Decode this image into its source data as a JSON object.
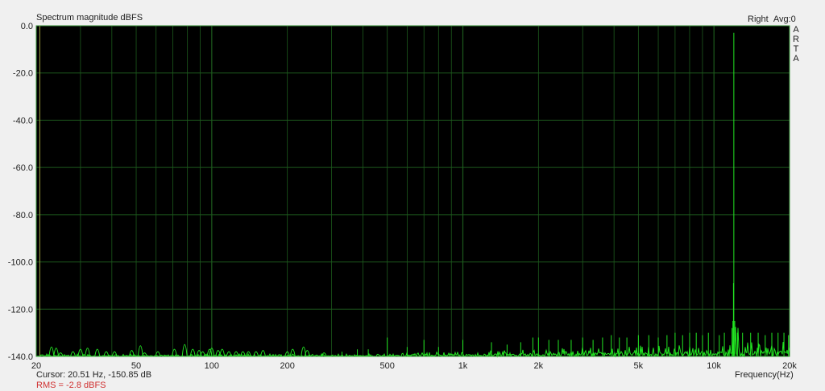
{
  "header": {
    "title": "Spectrum magnitude dBFS",
    "channel": "Right",
    "avg": "Avg:0",
    "logo": [
      "A",
      "R",
      "T",
      "A"
    ]
  },
  "footer": {
    "cursor": "Cursor: 20.51 Hz, -150.85 dB",
    "rms": "RMS =   -2.8 dBFS"
  },
  "colors": {
    "background": "#000000",
    "grid": "#1d5a1d",
    "trace": "#22e522",
    "cursor_line": "#a0a040",
    "rms_text": "#d03030"
  },
  "chart_data": {
    "type": "line",
    "title": "Spectrum magnitude dBFS",
    "xlabel": "Frequency(Hz)",
    "ylabel": "",
    "xscale": "log",
    "xlim": [
      20,
      20000
    ],
    "ylim": [
      -140,
      0
    ],
    "grid": true,
    "x_ticks": [
      {
        "v": 20,
        "label": "20"
      },
      {
        "v": 50,
        "label": "50"
      },
      {
        "v": 100,
        "label": "100"
      },
      {
        "v": 200,
        "label": "200"
      },
      {
        "v": 500,
        "label": "500"
      },
      {
        "v": 1000,
        "label": "1k"
      },
      {
        "v": 2000,
        "label": "2k"
      },
      {
        "v": 5000,
        "label": "5k"
      },
      {
        "v": 10000,
        "label": "10k"
      },
      {
        "v": 20000,
        "label": "20k"
      }
    ],
    "y_ticks": [
      {
        "v": 0,
        "label": "0.0"
      },
      {
        "v": -20,
        "label": "-20.0"
      },
      {
        "v": -40,
        "label": "-40.0"
      },
      {
        "v": -60,
        "label": "-60.0"
      },
      {
        "v": -80,
        "label": "-80.0"
      },
      {
        "v": -100,
        "label": "-100.0"
      },
      {
        "v": -120,
        "label": "-120.0"
      },
      {
        "v": -140,
        "label": "-140.0"
      }
    ],
    "cursor_hz": 20.51,
    "noise_floor_db": -140,
    "peaks": [
      [
        23,
        -133
      ],
      [
        24,
        -134
      ],
      [
        25,
        -138
      ],
      [
        28,
        -137
      ],
      [
        30,
        -135
      ],
      [
        32,
        -134
      ],
      [
        35,
        -135
      ],
      [
        38,
        -137
      ],
      [
        41,
        -137
      ],
      [
        48,
        -136
      ],
      [
        52,
        -132
      ],
      [
        54,
        -138
      ],
      [
        61,
        -137
      ],
      [
        71,
        -135
      ],
      [
        78,
        -131
      ],
      [
        84,
        -135
      ],
      [
        89,
        -136
      ],
      [
        92,
        -137
      ],
      [
        98,
        -135
      ],
      [
        100,
        -134
      ],
      [
        106,
        -136
      ],
      [
        110,
        -135
      ],
      [
        117,
        -137
      ],
      [
        125,
        -137
      ],
      [
        133,
        -137
      ],
      [
        140,
        -137
      ],
      [
        150,
        -137
      ],
      [
        160,
        -136
      ],
      [
        200,
        -137
      ],
      [
        210,
        -135
      ],
      [
        232,
        -133
      ],
      [
        240,
        -136
      ],
      [
        280,
        -138
      ],
      [
        330,
        -138
      ],
      [
        380,
        -137
      ],
      [
        420,
        -137
      ],
      [
        500,
        -132
      ],
      [
        600,
        -136
      ],
      [
        700,
        -133
      ],
      [
        800,
        -136
      ],
      [
        1000,
        -133
      ],
      [
        1300,
        -134
      ],
      [
        1500,
        -135
      ],
      [
        1700,
        -134
      ],
      [
        1900,
        -132
      ],
      [
        2000,
        -132
      ],
      [
        2200,
        -133
      ],
      [
        2400,
        -133
      ],
      [
        2700,
        -133
      ],
      [
        3000,
        -132
      ],
      [
        3300,
        -133
      ],
      [
        3600,
        -132
      ],
      [
        3900,
        -131
      ],
      [
        4200,
        -132
      ],
      [
        4500,
        -132
      ],
      [
        5000,
        -131
      ],
      [
        5500,
        -131
      ],
      [
        6000,
        -132
      ],
      [
        6500,
        -131
      ],
      [
        7000,
        -130
      ],
      [
        7500,
        -131
      ],
      [
        8000,
        -130
      ],
      [
        8500,
        -130
      ],
      [
        9000,
        -131
      ],
      [
        9500,
        -130
      ],
      [
        10500,
        -131
      ],
      [
        11000,
        -130
      ],
      [
        11800,
        -128
      ],
      [
        11900,
        -125
      ],
      [
        11960,
        -109
      ],
      [
        12000,
        -3
      ],
      [
        12100,
        -125
      ],
      [
        12400,
        -130
      ],
      [
        13000,
        -130
      ],
      [
        14000,
        -130
      ],
      [
        15000,
        -130
      ],
      [
        16000,
        -131
      ],
      [
        17000,
        -130
      ],
      [
        18000,
        -130
      ],
      [
        19000,
        -130
      ],
      [
        19800,
        -131
      ]
    ]
  }
}
